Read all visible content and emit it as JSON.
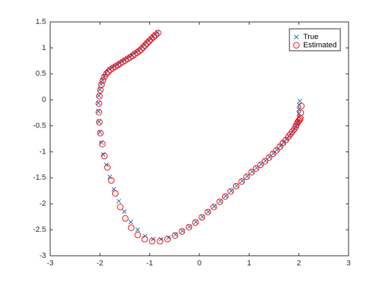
{
  "chart_data": {
    "type": "scatter",
    "title": "",
    "xlabel": "",
    "ylabel": "",
    "xlim": [
      -3,
      3
    ],
    "ylim": [
      -3,
      1.5
    ],
    "xticks": [
      "-3",
      "-2",
      "-1",
      "0",
      "1",
      "2",
      "3"
    ],
    "yticks": [
      "-3",
      "-2.5",
      "-2",
      "-1.5",
      "-1",
      "-0.5",
      "0",
      "0.5",
      "1",
      "1.5"
    ],
    "grid": false,
    "legend_position": "top-right",
    "series": [
      {
        "name": "True",
        "marker": "x",
        "color": "#0072BD",
        "x": [
          -0.84,
          -0.89,
          -0.93,
          -0.97,
          -1.02,
          -1.06,
          -1.1,
          -1.14,
          -1.18,
          -1.22,
          -1.26,
          -1.31,
          -1.35,
          -1.4,
          -1.45,
          -1.5,
          -1.55,
          -1.6,
          -1.65,
          -1.7,
          -1.75,
          -1.8,
          -1.84,
          -1.88,
          -1.92,
          -1.95,
          -1.98,
          -2.0,
          -2.02,
          -2.03,
          -2.03,
          -2.02,
          -2.0,
          -1.97,
          -1.93,
          -1.87,
          -1.8,
          -1.72,
          -1.62,
          -1.51,
          -1.38,
          -1.24,
          -1.09,
          -0.93,
          -0.77,
          -0.62,
          -0.48,
          -0.34,
          -0.2,
          -0.07,
          0.06,
          0.18,
          0.3,
          0.42,
          0.53,
          0.64,
          0.75,
          0.86,
          0.96,
          1.06,
          1.15,
          1.24,
          1.33,
          1.41,
          1.49,
          1.56,
          1.63,
          1.69,
          1.75,
          1.8,
          1.84,
          1.88,
          1.92,
          1.95,
          1.97,
          1.99,
          2.0,
          2.0,
          2.0,
          2.01,
          2.02
        ],
        "y": [
          1.3,
          1.26,
          1.22,
          1.18,
          1.14,
          1.1,
          1.06,
          1.02,
          0.98,
          0.95,
          0.92,
          0.89,
          0.86,
          0.83,
          0.8,
          0.77,
          0.74,
          0.71,
          0.68,
          0.65,
          0.62,
          0.59,
          0.55,
          0.51,
          0.45,
          0.38,
          0.3,
          0.2,
          0.08,
          -0.06,
          -0.22,
          -0.42,
          -0.62,
          -0.82,
          -1.05,
          -1.25,
          -1.48,
          -1.72,
          -1.95,
          -2.15,
          -2.35,
          -2.5,
          -2.62,
          -2.68,
          -2.68,
          -2.65,
          -2.59,
          -2.52,
          -2.44,
          -2.35,
          -2.25,
          -2.15,
          -2.05,
          -1.95,
          -1.85,
          -1.75,
          -1.65,
          -1.56,
          -1.47,
          -1.38,
          -1.31,
          -1.24,
          -1.17,
          -1.1,
          -1.03,
          -0.96,
          -0.89,
          -0.82,
          -0.76,
          -0.7,
          -0.65,
          -0.6,
          -0.55,
          -0.5,
          -0.45,
          -0.4,
          -0.33,
          -0.26,
          -0.18,
          -0.1,
          -0.02
        ]
      },
      {
        "name": "Estimated",
        "marker": "o",
        "color": "#FF0000",
        "x": [
          -0.83,
          -0.88,
          -0.92,
          -0.97,
          -1.01,
          -1.05,
          -1.09,
          -1.13,
          -1.17,
          -1.21,
          -1.25,
          -1.3,
          -1.34,
          -1.39,
          -1.44,
          -1.49,
          -1.54,
          -1.59,
          -1.64,
          -1.69,
          -1.74,
          -1.79,
          -1.83,
          -1.87,
          -1.91,
          -1.94,
          -1.97,
          -1.99,
          -2.01,
          -2.02,
          -2.02,
          -2.01,
          -1.99,
          -1.95,
          -1.91,
          -1.85,
          -1.77,
          -1.69,
          -1.59,
          -1.49,
          -1.37,
          -1.24,
          -1.1,
          -0.95,
          -0.79,
          -0.64,
          -0.49,
          -0.35,
          -0.21,
          -0.08,
          0.05,
          0.17,
          0.29,
          0.41,
          0.52,
          0.63,
          0.74,
          0.85,
          0.95,
          1.05,
          1.14,
          1.23,
          1.32,
          1.4,
          1.48,
          1.55,
          1.62,
          1.68,
          1.74,
          1.79,
          1.83,
          1.87,
          1.91,
          1.94,
          1.96,
          1.98,
          2.0,
          2.02,
          2.03,
          2.04,
          2.05
        ],
        "y": [
          1.29,
          1.25,
          1.21,
          1.17,
          1.13,
          1.09,
          1.05,
          1.01,
          0.97,
          0.94,
          0.91,
          0.88,
          0.85,
          0.82,
          0.79,
          0.76,
          0.73,
          0.7,
          0.67,
          0.64,
          0.61,
          0.58,
          0.54,
          0.5,
          0.44,
          0.37,
          0.29,
          0.19,
          0.07,
          -0.07,
          -0.24,
          -0.43,
          -0.64,
          -0.85,
          -1.08,
          -1.3,
          -1.55,
          -1.8,
          -2.06,
          -2.28,
          -2.46,
          -2.6,
          -2.68,
          -2.72,
          -2.72,
          -2.68,
          -2.61,
          -2.53,
          -2.45,
          -2.36,
          -2.26,
          -2.16,
          -2.06,
          -1.96,
          -1.86,
          -1.76,
          -1.66,
          -1.57,
          -1.48,
          -1.39,
          -1.32,
          -1.25,
          -1.18,
          -1.11,
          -1.04,
          -0.97,
          -0.9,
          -0.83,
          -0.77,
          -0.71,
          -0.66,
          -0.61,
          -0.56,
          -0.51,
          -0.47,
          -0.43,
          -0.4,
          -0.38,
          -0.35,
          -0.25,
          -0.12
        ]
      }
    ]
  }
}
